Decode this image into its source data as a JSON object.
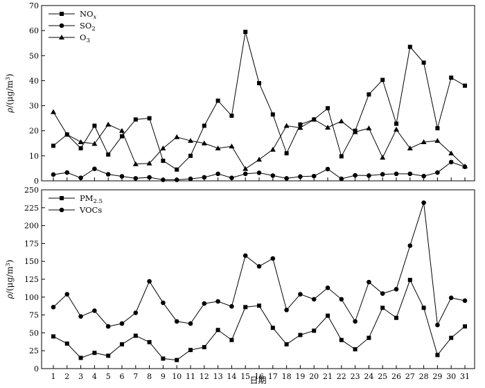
{
  "chart_data": [
    {
      "type": "line",
      "ylabel": "ρ/(μg/m³)",
      "ylim": [
        0,
        70
      ],
      "yticks": [
        0,
        10,
        20,
        30,
        40,
        50,
        60,
        70
      ],
      "x": [
        1,
        2,
        3,
        4,
        5,
        6,
        7,
        8,
        9,
        10,
        11,
        12,
        13,
        14,
        15,
        16,
        17,
        18,
        19,
        20,
        21,
        22,
        23,
        24,
        25,
        26,
        27,
        28,
        29,
        30,
        31
      ],
      "legend_position": "top-left",
      "series": [
        {
          "name": "NOx",
          "marker": "square",
          "values": [
            14,
            18.5,
            13,
            22,
            10.5,
            17.8,
            24.5,
            25,
            8,
            4.5,
            10,
            22,
            32,
            26,
            59.5,
            39,
            26.5,
            11,
            22.5,
            24.5,
            29,
            9.8,
            20,
            34.5,
            40.3,
            22.8,
            53.5,
            47.2,
            21,
            41.2,
            38
          ]
        },
        {
          "name": "SO2",
          "marker": "circle",
          "values": [
            2.5,
            3.3,
            1.2,
            4.8,
            2.6,
            1.8,
            1,
            1.4,
            0.4,
            0.4,
            0.8,
            1.4,
            2.8,
            1.2,
            2.8,
            3.2,
            2.1,
            1,
            1.7,
            1.9,
            4.7,
            0.8,
            2.2,
            2.1,
            2.6,
            2.8,
            2.8,
            1.9,
            3.3,
            7.5,
            5.6
          ]
        },
        {
          "name": "O3",
          "marker": "triangle",
          "values": [
            27.5,
            18.5,
            15.5,
            14.8,
            22.5,
            20,
            6.7,
            7,
            13,
            17.5,
            16,
            15,
            13,
            13.8,
            4.8,
            8.5,
            12.5,
            22,
            21.2,
            24.5,
            21.3,
            23.8,
            19.5,
            21,
            9.3,
            20.5,
            13,
            15.5,
            16,
            11,
            5.8
          ]
        }
      ]
    },
    {
      "type": "line",
      "xlabel": "日期",
      "ylabel": "ρ/(μg/m³)",
      "ylim": [
        0,
        250
      ],
      "yticks": [
        0,
        25,
        50,
        75,
        100,
        125,
        150,
        175,
        200,
        225,
        250
      ],
      "x": [
        1,
        2,
        3,
        4,
        5,
        6,
        7,
        8,
        9,
        10,
        11,
        12,
        13,
        14,
        15,
        16,
        17,
        18,
        19,
        20,
        21,
        22,
        23,
        24,
        25,
        26,
        27,
        28,
        29,
        30,
        31
      ],
      "legend_position": "top-left",
      "series": [
        {
          "name": "PM2.5",
          "marker": "square",
          "values": [
            45,
            35,
            15,
            22,
            18,
            34,
            46,
            37,
            14,
            12,
            26,
            30,
            54,
            40,
            86,
            88,
            57,
            34,
            47,
            53,
            74,
            40,
            27,
            43,
            85,
            71,
            124,
            85,
            19,
            43,
            59
          ]
        },
        {
          "name": "VOCs",
          "marker": "circle",
          "values": [
            86,
            104,
            73,
            81,
            59,
            63,
            78,
            122,
            92,
            66,
            63,
            91,
            94,
            87,
            158,
            143,
            154,
            82,
            104,
            97,
            113,
            97,
            66,
            121,
            105,
            111,
            172,
            232,
            61,
            99,
            95
          ]
        }
      ]
    }
  ]
}
